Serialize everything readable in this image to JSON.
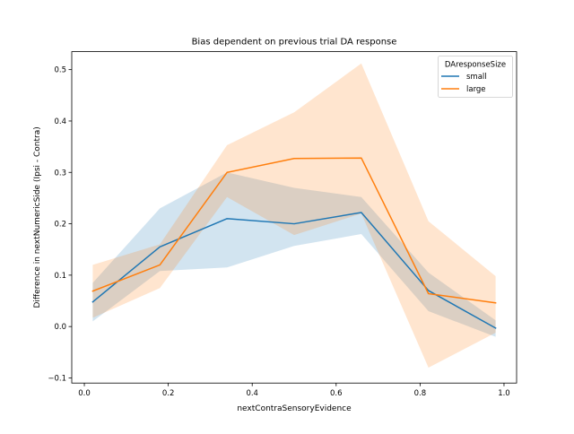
{
  "chart_data": {
    "type": "line",
    "title": "Bias dependent on previous trial DA response",
    "xlabel": "nextContraSensoryEvidence",
    "ylabel": "Difference in nextNumericSide (Ipsi - Contra)",
    "xlim": [
      -0.03,
      1.03
    ],
    "ylim": [
      -0.11,
      0.535
    ],
    "x_ticks": [
      0.0,
      0.2,
      0.4,
      0.6,
      0.8,
      1.0
    ],
    "x_tick_labels": [
      "0.0",
      "0.2",
      "0.4",
      "0.6",
      "0.8",
      "1.0"
    ],
    "y_ticks": [
      -0.1,
      0.0,
      0.1,
      0.2,
      0.3,
      0.4,
      0.5
    ],
    "y_tick_labels": [
      "−0.1",
      "0.0",
      "0.1",
      "0.2",
      "0.3",
      "0.4",
      "0.5"
    ],
    "grid": false,
    "legend": {
      "title": "DAresponseSize",
      "position": "upper right"
    },
    "x": [
      0.02,
      0.18,
      0.34,
      0.5,
      0.66,
      0.82,
      0.98
    ],
    "series": [
      {
        "name": "small",
        "color": "#1f77b4",
        "values": [
          0.048,
          0.155,
          0.21,
          0.2,
          0.222,
          0.07,
          -0.003
        ],
        "ci_low": [
          0.01,
          0.108,
          0.115,
          0.157,
          0.18,
          0.03,
          -0.02
        ],
        "ci_high": [
          0.085,
          0.23,
          0.3,
          0.27,
          0.252,
          0.105,
          0.012
        ]
      },
      {
        "name": "large",
        "color": "#ff7f0e",
        "values": [
          0.069,
          0.12,
          0.3,
          0.327,
          0.328,
          0.064,
          0.046
        ],
        "ci_low": [
          0.017,
          0.075,
          0.252,
          0.178,
          0.22,
          -0.08,
          -0.012
        ],
        "ci_high": [
          0.12,
          0.16,
          0.353,
          0.417,
          0.512,
          0.205,
          0.098
        ]
      }
    ]
  }
}
